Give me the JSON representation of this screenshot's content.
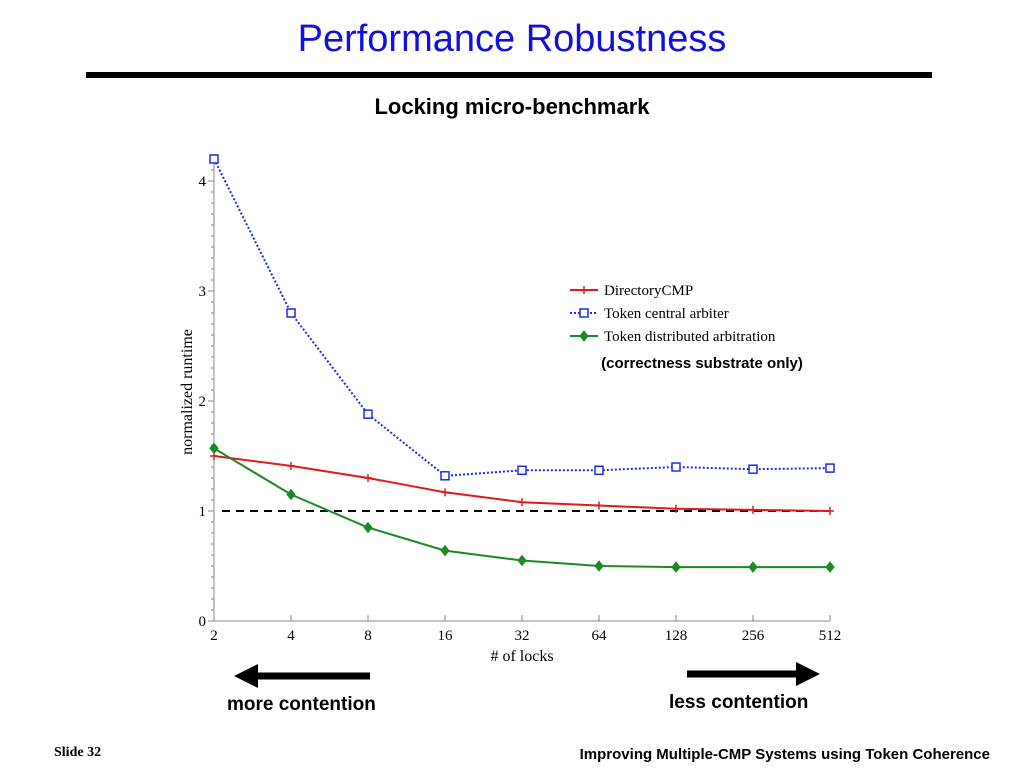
{
  "slide": {
    "title": "Performance Robustness",
    "footer_left": "Slide 32",
    "footer_right": "Improving Multiple-CMP Systems using Token Coherence"
  },
  "annotations": {
    "left_arrow_label": "more contention",
    "right_arrow_label": "less contention",
    "legend_note": "(correctness substrate only)"
  },
  "chart_data": {
    "type": "line",
    "title": "Locking micro-benchmark",
    "xlabel": "# of locks",
    "ylabel": "normalized runtime",
    "categories": [
      "2",
      "4",
      "8",
      "16",
      "32",
      "64",
      "128",
      "256",
      "512"
    ],
    "ylim": [
      0,
      4.2
    ],
    "yticks": [
      "0",
      "1",
      "2",
      "3",
      "4"
    ],
    "x_scale": "log2",
    "grid": false,
    "legend_position": "right",
    "reference_line": 1,
    "series": [
      {
        "name": "DirectoryCMP",
        "color": "#e01a1a",
        "marker": "plus",
        "dash": "solid",
        "values": [
          1.5,
          1.41,
          1.3,
          1.17,
          1.08,
          1.05,
          1.02,
          1.01,
          1.0
        ]
      },
      {
        "name": "Token central arbiter",
        "color": "#1a2ee0",
        "marker": "square",
        "dash": "dotted",
        "values": [
          4.2,
          2.8,
          1.88,
          1.32,
          1.37,
          1.37,
          1.4,
          1.38,
          1.39
        ]
      },
      {
        "name": "Token distributed arbitration",
        "color": "#1a8a22",
        "marker": "diamond",
        "dash": "solid",
        "values": [
          1.57,
          1.15,
          0.85,
          0.64,
          0.55,
          0.5,
          0.49,
          0.49,
          0.49
        ]
      }
    ]
  }
}
